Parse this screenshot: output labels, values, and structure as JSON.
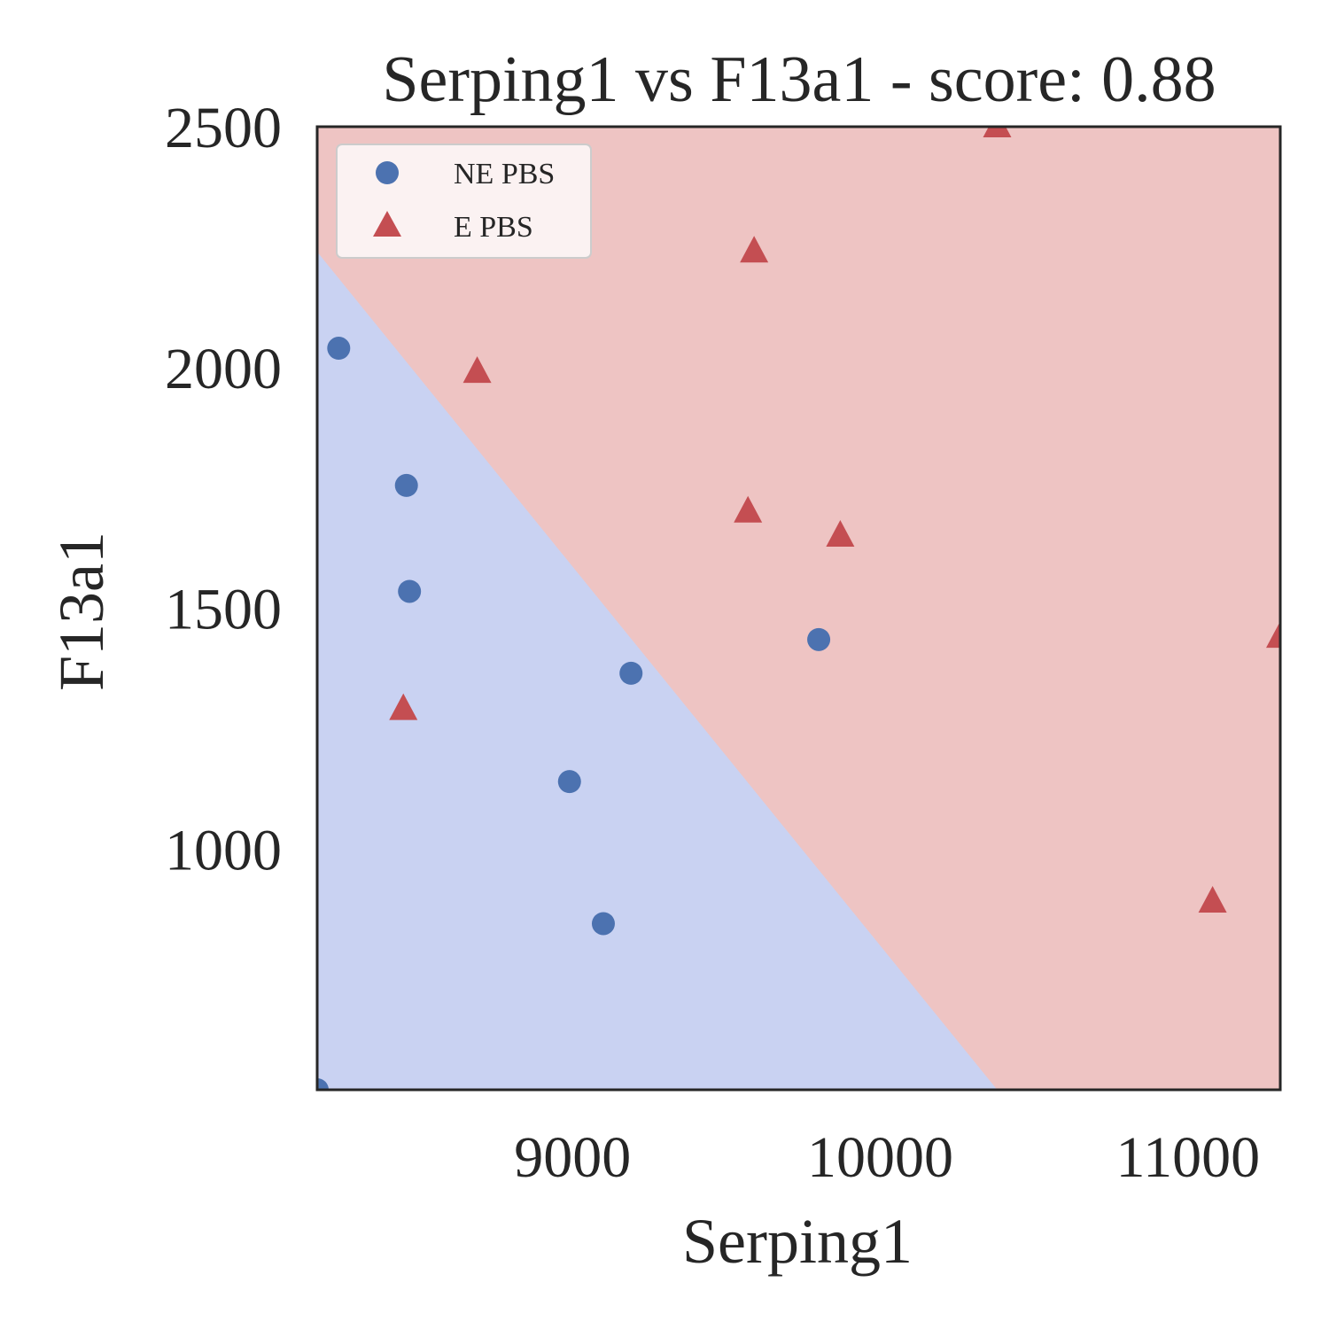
{
  "chart_data": {
    "type": "scatter",
    "title": "Serping1 vs F13a1 - score: 0.88",
    "xlabel": "Serping1",
    "ylabel": "F13a1",
    "xlim": [
      8170,
      11300
    ],
    "ylim": [
      500,
      2500
    ],
    "x_ticks": [
      9000,
      10000,
      11000
    ],
    "y_ticks": [
      1000,
      1500,
      2000,
      2500
    ],
    "grid": false,
    "legend_position": "top-left",
    "decision_regions": {
      "colors": {
        "NE PBS": "#c9d2f2",
        "E PBS": "#eec4c3"
      },
      "boundary": [
        [
          8170,
          2240
        ],
        [
          10380,
          500
        ]
      ]
    },
    "series": [
      {
        "name": "NE PBS",
        "marker": "circle",
        "color": "#4c72b0",
        "points": [
          [
            8240,
            2040
          ],
          [
            8460,
            1755
          ],
          [
            8470,
            1535
          ],
          [
            9190,
            1365
          ],
          [
            8990,
            1140
          ],
          [
            9100,
            845
          ],
          [
            9800,
            1435
          ],
          [
            8170,
            500
          ]
        ]
      },
      {
        "name": "E PBS",
        "marker": "triangle",
        "color": "#c44e52",
        "points": [
          [
            10380,
            2500
          ],
          [
            9590,
            2240
          ],
          [
            8690,
            1990
          ],
          [
            9570,
            1700
          ],
          [
            9870,
            1650
          ],
          [
            8450,
            1290
          ],
          [
            11080,
            890
          ],
          [
            11300,
            1440
          ]
        ]
      }
    ]
  }
}
